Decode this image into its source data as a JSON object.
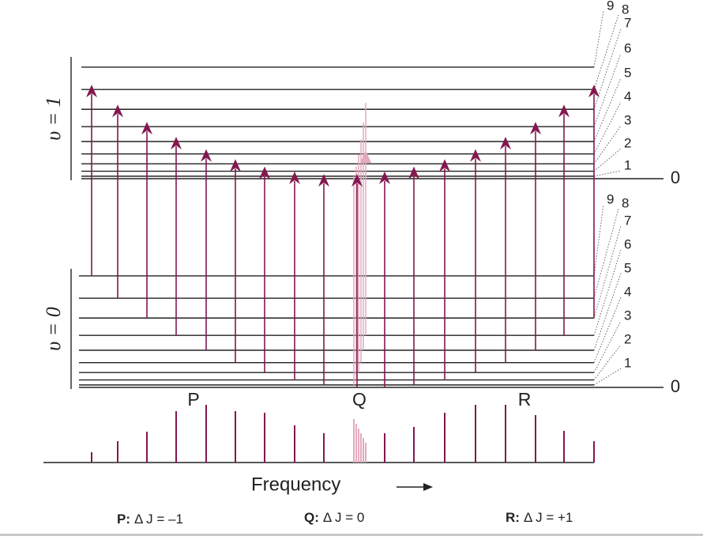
{
  "upper": {
    "label": "υ = 1",
    "j_labels": [
      "0",
      "1",
      "2",
      "3",
      "4",
      "5",
      "6",
      "7",
      "8",
      "9"
    ]
  },
  "lower": {
    "label": "υ = 0",
    "j_labels": [
      "0",
      "1",
      "2",
      "3",
      "4",
      "5",
      "6",
      "7",
      "8",
      "9"
    ]
  },
  "branches": [
    "P",
    "Q",
    "R"
  ],
  "axis_label": "Frequency",
  "captions": [
    {
      "branch": "P:",
      "rule": "Δ J = –1"
    },
    {
      "branch": "Q:",
      "rule": "Δ J = 0"
    },
    {
      "branch": "R:",
      "rule": "Δ J = +1"
    }
  ]
}
